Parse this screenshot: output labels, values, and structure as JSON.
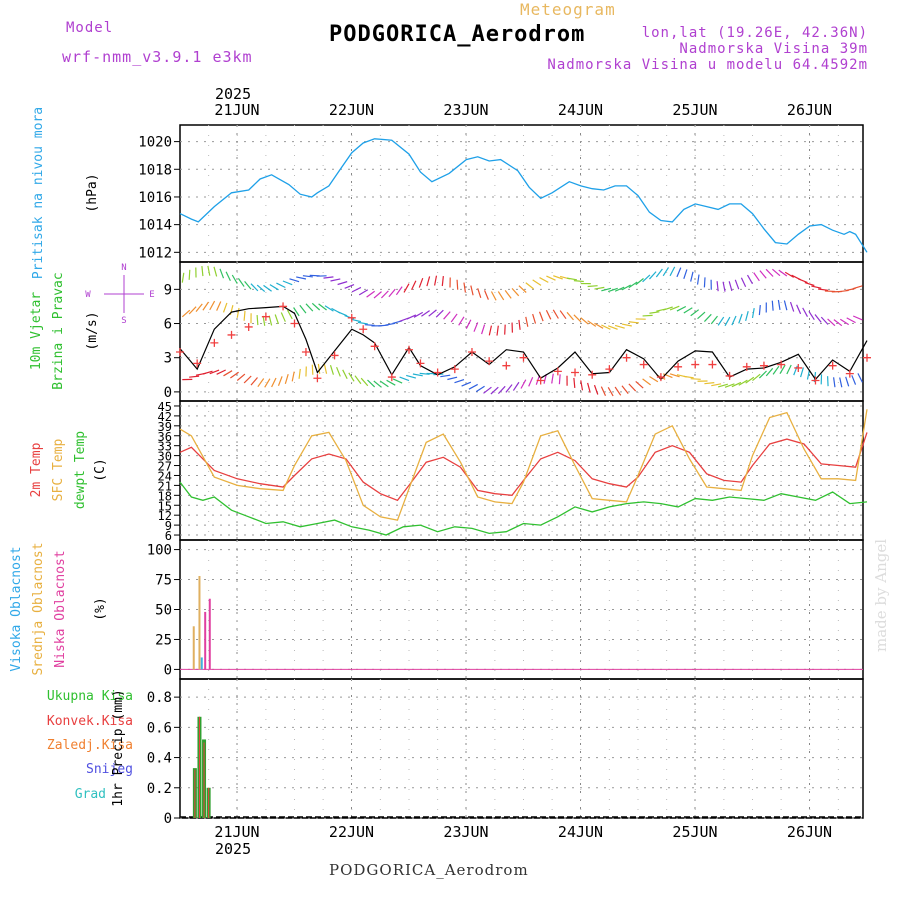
{
  "header": {
    "model_label": "Model",
    "model_name": "wrf-nmm_v3.9.1 e3km",
    "meteogram": "Meteogram",
    "station": "PODGORICA_Aerodrom",
    "lonlat": "lon,lat (19.26E, 42.36N)",
    "elevation": "Nadmorska Visina 39m",
    "elevation_model": "Nadmorska Visina u modelu 64.4592m"
  },
  "footer": {
    "station": "PODGORICA_Aerodrom",
    "credit": "made by Angel"
  },
  "chart_data": {
    "type": "line",
    "year": "2025",
    "days": [
      "21JUN",
      "22JUN",
      "23JUN",
      "24JUN",
      "25JUN",
      "26JUN"
    ],
    "panels": {
      "pressure": {
        "ylabel": [
          "Pritisak na nivou mora",
          "(hPa)"
        ],
        "yticks": [
          "1012",
          "1014",
          "1016",
          "1018",
          "1020"
        ],
        "ylim": [
          1011.3,
          1021.2
        ],
        "x": [
          0,
          0.1,
          0.16,
          0.3,
          0.45,
          0.6,
          0.7,
          0.8,
          0.95,
          1.05,
          1.15,
          1.2,
          1.3,
          1.4,
          1.5,
          1.6,
          1.7,
          1.85,
          2.0,
          2.1,
          2.2,
          2.35,
          2.5,
          2.6,
          2.7,
          2.8,
          2.95,
          3.05,
          3.15,
          3.25,
          3.4,
          3.5,
          3.6,
          3.7,
          3.8,
          3.9,
          4.0,
          4.1,
          4.2,
          4.3,
          4.4,
          4.5,
          4.6,
          4.7,
          4.8,
          4.9,
          5.0,
          5.1,
          5.2,
          5.3,
          5.4,
          5.5,
          5.6,
          5.7,
          5.8,
          5.85,
          5.9,
          6.0
        ],
        "values": [
          1014.8,
          1014.4,
          1014.2,
          1015.3,
          1016.3,
          1016.5,
          1017.3,
          1017.6,
          1016.9,
          1016.2,
          1016.0,
          1016.3,
          1016.8,
          1018.0,
          1019.2,
          1019.9,
          1020.2,
          1020.1,
          1019.1,
          1017.8,
          1017.1,
          1017.7,
          1018.7,
          1018.9,
          1018.6,
          1018.7,
          1017.9,
          1016.7,
          1015.9,
          1016.3,
          1017.1,
          1016.8,
          1016.6,
          1016.5,
          1016.8,
          1016.8,
          1016.1,
          1014.9,
          1014.3,
          1014.2,
          1015.1,
          1015.5,
          1015.3,
          1015.1,
          1015.5,
          1015.5,
          1014.8,
          1013.7,
          1012.7,
          1012.6,
          1013.3,
          1013.9,
          1014.0,
          1013.6,
          1013.3,
          1013.5,
          1013.3,
          1012.0
        ]
      },
      "wind": {
        "ylabel": [
          "10m Vjetar",
          "Brzina i Pravac",
          "(m/s)"
        ],
        "compass": [
          "N",
          "E",
          "S",
          "W"
        ],
        "yticks": [
          "0",
          "3",
          "6",
          "9"
        ],
        "ylim": [
          -0.8,
          11.4
        ],
        "speed": {
          "x": [
            0,
            0.15,
            0.3,
            0.45,
            0.6,
            0.75,
            0.9,
            1.0,
            1.1,
            1.2,
            1.35,
            1.5,
            1.6,
            1.7,
            1.85,
            2.0,
            2.1,
            2.25,
            2.4,
            2.55,
            2.7,
            2.85,
            3.0,
            3.15,
            3.3,
            3.45,
            3.6,
            3.75,
            3.9,
            4.05,
            4.2,
            4.35,
            4.5,
            4.65,
            4.8,
            4.95,
            5.1,
            5.25,
            5.4,
            5.55,
            5.7,
            5.85,
            6.0
          ],
          "values": [
            3.8,
            2.0,
            5.5,
            7.0,
            7.3,
            7.4,
            7.5,
            6.9,
            4.6,
            1.7,
            3.6,
            5.5,
            5.0,
            4.3,
            1.5,
            3.9,
            2.3,
            1.5,
            2.2,
            3.5,
            2.4,
            3.7,
            3.5,
            1.2,
            2.1,
            3.5,
            1.6,
            1.7,
            3.7,
            2.9,
            1.1,
            2.7,
            3.6,
            3.5,
            1.3,
            2.0,
            2.1,
            2.6,
            3.3,
            1.1,
            2.8,
            1.8,
            4.5
          ]
        },
        "gust": {
          "x": [
            0,
            0.15,
            0.3,
            0.45,
            0.6,
            0.75,
            0.9,
            1.0,
            1.1,
            1.2,
            1.35,
            1.5,
            1.6,
            1.7,
            1.85,
            2.0,
            2.1,
            2.25,
            2.4,
            2.55,
            2.7,
            2.85,
            3.0,
            3.15,
            3.3,
            3.45,
            3.6,
            3.75,
            3.9,
            4.05,
            4.2,
            4.35,
            4.5,
            4.65,
            4.8,
            4.95,
            5.1,
            5.25,
            5.4,
            5.55,
            5.7,
            5.85,
            6.0
          ],
          "values": [
            3.5,
            2.5,
            4.3,
            5.0,
            5.7,
            6.6,
            7.5,
            6.0,
            3.5,
            1.2,
            3.2,
            6.5,
            5.5,
            4.0,
            1.3,
            3.7,
            2.5,
            1.7,
            2.0,
            3.5,
            2.7,
            2.3,
            3.0,
            1.0,
            1.8,
            1.7,
            1.5,
            2.0,
            3.0,
            2.4,
            1.3,
            2.2,
            2.4,
            2.4,
            1.4,
            2.2,
            2.3,
            2.4,
            2.1,
            1.0,
            2.3,
            1.6,
            3.0
          ]
        }
      },
      "temperature": {
        "ylabel": [
          "2m Temp",
          "SFC Temp",
          "dewpt Temp",
          "(C)"
        ],
        "yticks": [
          "6",
          "9",
          "12",
          "15",
          "18",
          "21",
          "24",
          "27",
          "30",
          "33",
          "36",
          "39",
          "42",
          "45"
        ],
        "ylim": [
          4.5,
          46.5
        ],
        "series": [
          {
            "name": "2m Temp",
            "color": "#e84040",
            "x": [
              0,
              0.1,
              0.3,
              0.5,
              0.7,
              0.9,
              1.0,
              1.15,
              1.3,
              1.45,
              1.6,
              1.75,
              1.9,
              2.0,
              2.15,
              2.3,
              2.45,
              2.6,
              2.75,
              2.9,
              3.0,
              3.15,
              3.3,
              3.45,
              3.6,
              3.75,
              3.9,
              4.0,
              4.15,
              4.3,
              4.45,
              4.6,
              4.75,
              4.9,
              5.0,
              5.15,
              5.3,
              5.45,
              5.6,
              5.75,
              5.9,
              6.0
            ],
            "values": [
              31.0,
              32.5,
              25.5,
              23.0,
              21.5,
              20.5,
              24.0,
              29.0,
              30.5,
              29.0,
              22.0,
              18.5,
              16.5,
              21.0,
              28.0,
              29.5,
              26.5,
              19.5,
              18.5,
              18.0,
              22.5,
              29.0,
              31.0,
              28.5,
              23.0,
              21.5,
              20.5,
              23.5,
              31.0,
              33.0,
              31.0,
              24.5,
              22.5,
              22.0,
              27.0,
              33.5,
              35.0,
              33.5,
              27.5,
              27.0,
              26.5,
              37.0
            ]
          },
          {
            "name": "SFC Temp",
            "color": "#e8b040",
            "x": [
              0,
              0.1,
              0.3,
              0.5,
              0.7,
              0.9,
              1.0,
              1.15,
              1.3,
              1.45,
              1.6,
              1.75,
              1.9,
              2.0,
              2.15,
              2.3,
              2.45,
              2.6,
              2.75,
              2.9,
              3.0,
              3.15,
              3.3,
              3.45,
              3.6,
              3.75,
              3.9,
              4.0,
              4.15,
              4.3,
              4.45,
              4.6,
              4.75,
              4.9,
              5.0,
              5.15,
              5.3,
              5.45,
              5.6,
              5.75,
              5.9,
              6.0
            ],
            "values": [
              38.0,
              36.0,
              23.5,
              21.0,
              20.0,
              19.5,
              27.0,
              36.0,
              37.0,
              28.5,
              15.0,
              11.5,
              10.5,
              20.0,
              34.0,
              36.5,
              28.0,
              17.5,
              16.0,
              15.5,
              22.0,
              36.0,
              37.5,
              27.0,
              17.0,
              16.5,
              16.0,
              24.0,
              36.5,
              39.0,
              29.0,
              20.5,
              20.0,
              19.5,
              30.0,
              41.5,
              43.0,
              32.0,
              23.0,
              23.0,
              22.5,
              44.0
            ]
          },
          {
            "name": "dewpt Temp",
            "color": "#30c030",
            "x": [
              0,
              0.1,
              0.2,
              0.3,
              0.45,
              0.6,
              0.75,
              0.9,
              1.05,
              1.2,
              1.35,
              1.5,
              1.65,
              1.8,
              1.95,
              2.1,
              2.25,
              2.4,
              2.55,
              2.7,
              2.85,
              3.0,
              3.15,
              3.3,
              3.45,
              3.6,
              3.75,
              3.9,
              4.05,
              4.2,
              4.35,
              4.5,
              4.65,
              4.8,
              4.95,
              5.1,
              5.25,
              5.4,
              5.55,
              5.7,
              5.85,
              6.0
            ],
            "values": [
              22.0,
              17.5,
              16.5,
              17.5,
              13.5,
              11.5,
              9.5,
              10.0,
              8.5,
              9.5,
              10.5,
              8.5,
              7.5,
              6.0,
              8.5,
              9.0,
              7.0,
              8.5,
              8.0,
              6.5,
              7.0,
              9.5,
              9.0,
              11.5,
              14.5,
              13.0,
              14.5,
              15.5,
              16.0,
              15.5,
              14.5,
              17.0,
              16.5,
              17.5,
              17.0,
              16.5,
              18.5,
              17.5,
              16.5,
              19.0,
              15.5,
              16.0
            ]
          }
        ]
      },
      "cloud": {
        "ylabel": [
          "Visoka Oblacnost",
          "Srednja Oblacnost",
          "Niska Oblacnost",
          "(%)"
        ],
        "yticks": [
          "0",
          "25",
          "50",
          "75",
          "100"
        ],
        "ylim": [
          -8,
          108
        ],
        "bars": [
          {
            "name": "Srednja",
            "color": "#e0b060",
            "x": [
              0.12,
              0.17
            ],
            "values": [
              36,
              78
            ]
          },
          {
            "name": "Visoka",
            "color": "#40b0e0",
            "x": [
              0.19
            ],
            "values": [
              10
            ]
          },
          {
            "name": "Niska",
            "color": "#e040a0",
            "x": [
              0.22,
              0.26
            ],
            "values": [
              48,
              59
            ]
          }
        ]
      },
      "precip": {
        "ylabel": [
          "1hr Precip (mm)"
        ],
        "legend": [
          {
            "name": "Ukupna Kisa",
            "color": "#30c030"
          },
          {
            "name": "Konvek.Kisa",
            "color": "#e84040"
          },
          {
            "name": "Zaledj.Kisa",
            "color": "#f08030"
          },
          {
            "name": "Snijeg",
            "color": "#5050e0"
          },
          {
            "name": "Grad",
            "color": "#30c0c0"
          }
        ],
        "yticks": [
          "0",
          "0.2",
          "0.4",
          "0.6",
          "0.8"
        ],
        "ylim": [
          0,
          0.92
        ],
        "bars": [
          {
            "x": 0.13,
            "total": 0.33,
            "convective": 0.32
          },
          {
            "x": 0.17,
            "total": 0.67,
            "convective": 0.67
          },
          {
            "x": 0.21,
            "total": 0.52,
            "convective": 0.5
          },
          {
            "x": 0.25,
            "total": 0.2,
            "convective": 0.2
          }
        ]
      }
    }
  }
}
